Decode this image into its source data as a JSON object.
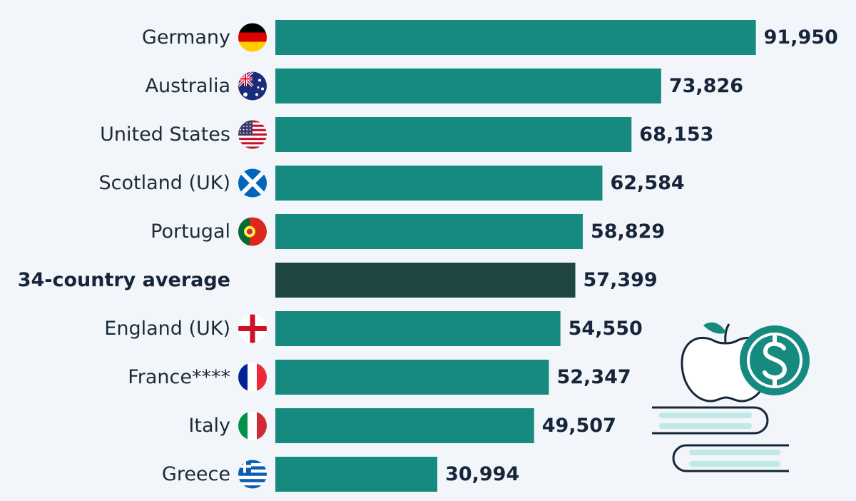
{
  "colors": {
    "background": "#f2f6fa",
    "bar": "#168a7e",
    "average_bar": "#1f4643",
    "text": "#16253a",
    "accent_light": "#bfe9e6"
  },
  "chart_data": {
    "type": "bar",
    "orientation": "horizontal",
    "categories": [
      "Germany",
      "Australia",
      "United States",
      "Scotland (UK)",
      "Portugal",
      "34-country average",
      "England (UK)",
      "France****",
      "Italy",
      "Greece"
    ],
    "values": [
      91950,
      73826,
      68153,
      62584,
      58829,
      57399,
      54550,
      52347,
      49507,
      30994
    ],
    "value_labels": [
      "91,950",
      "73,826",
      "68,153",
      "62,584",
      "58,829",
      "57,399",
      "54,550",
      "52,347",
      "49,507",
      "30,994"
    ],
    "flags": [
      "germany-flag-icon",
      "australia-flag-icon",
      "united-states-flag-icon",
      "scotland-flag-icon",
      "portugal-flag-icon",
      "",
      "england-flag-icon",
      "france-flag-icon",
      "italy-flag-icon",
      "greece-flag-icon"
    ],
    "highlight": "34-country average",
    "xlim": [
      0,
      92000
    ],
    "legend": "none",
    "grid": false
  }
}
